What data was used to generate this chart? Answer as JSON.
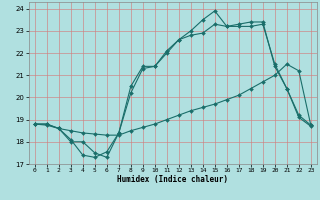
{
  "xlabel": "Humidex (Indice chaleur)",
  "background_color": "#b0e0e0",
  "grid_color": "#d08080",
  "line_color": "#1a6e6a",
  "xlim": [
    -0.5,
    23.5
  ],
  "ylim": [
    17.0,
    24.3
  ],
  "yticks": [
    17,
    18,
    19,
    20,
    21,
    22,
    23,
    24
  ],
  "xticks": [
    0,
    1,
    2,
    3,
    4,
    5,
    6,
    7,
    8,
    9,
    10,
    11,
    12,
    13,
    14,
    15,
    16,
    17,
    18,
    19,
    20,
    21,
    22,
    23
  ],
  "line1_x": [
    0,
    1,
    2,
    3,
    4,
    5,
    6,
    7,
    8,
    9,
    10,
    11,
    12,
    13,
    14,
    15,
    16,
    17,
    18,
    19,
    20,
    21,
    22,
    23
  ],
  "line1_y": [
    18.8,
    18.8,
    18.6,
    18.1,
    17.4,
    17.3,
    17.55,
    18.4,
    20.2,
    21.3,
    21.4,
    22.0,
    22.6,
    22.8,
    22.9,
    23.3,
    23.2,
    23.2,
    23.2,
    23.3,
    21.5,
    20.4,
    19.2,
    18.75
  ],
  "line2_x": [
    0,
    1,
    2,
    3,
    4,
    5,
    6,
    7,
    8,
    9,
    10,
    11,
    12,
    13,
    14,
    15,
    16,
    17,
    18,
    19,
    20,
    21,
    22,
    23
  ],
  "line2_y": [
    18.8,
    18.75,
    18.6,
    18.5,
    18.4,
    18.35,
    18.3,
    18.3,
    18.5,
    18.65,
    18.8,
    19.0,
    19.2,
    19.4,
    19.55,
    19.7,
    19.9,
    20.1,
    20.4,
    20.7,
    21.0,
    21.5,
    21.2,
    18.75
  ],
  "line3_x": [
    0,
    1,
    2,
    3,
    4,
    5,
    6,
    7,
    8,
    9,
    10,
    11,
    12,
    13,
    14,
    15,
    16,
    17,
    18,
    19,
    20,
    21,
    22,
    23
  ],
  "line3_y": [
    18.8,
    18.8,
    18.6,
    18.0,
    18.0,
    17.5,
    17.3,
    18.4,
    20.5,
    21.4,
    21.4,
    22.1,
    22.6,
    23.0,
    23.5,
    23.9,
    23.2,
    23.3,
    23.4,
    23.4,
    21.4,
    20.4,
    19.1,
    18.7
  ]
}
